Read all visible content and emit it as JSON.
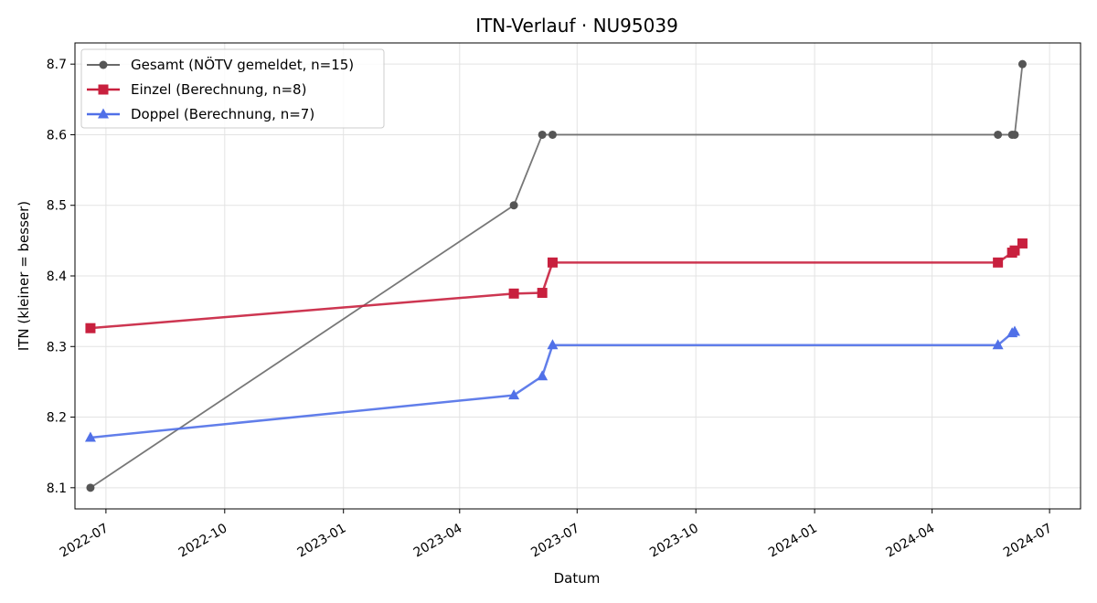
{
  "chart_data": {
    "type": "line",
    "title": "ITN-Verlauf · NU95039",
    "xlabel": "Datum",
    "ylabel": "ITN  (kleiner = besser)",
    "x_type": "date",
    "xlim": [
      "2022-06-07",
      "2024-07-25"
    ],
    "ylim": [
      8.07,
      8.73
    ],
    "x_ticks": [
      "2022-07-01",
      "2022-10-01",
      "2023-01-01",
      "2023-04-01",
      "2023-07-01",
      "2023-10-01",
      "2024-01-01",
      "2024-04-01",
      "2024-07-01"
    ],
    "x_tick_labels": [
      "2022-07",
      "2022-10",
      "2023-01",
      "2023-04",
      "2023-07",
      "2023-10",
      "2024-01",
      "2024-04",
      "2024-07"
    ],
    "y_ticks": [
      8.1,
      8.2,
      8.3,
      8.4,
      8.5,
      8.6,
      8.7
    ],
    "y_tick_labels": [
      "8.1",
      "8.2",
      "8.3",
      "8.4",
      "8.5",
      "8.6",
      "8.7"
    ],
    "grid": true,
    "legend_position": "top-left",
    "series": [
      {
        "name": "Gesamt (NÖTV gemeldet, n=15)",
        "color": "#555555",
        "marker": "circle",
        "points": [
          {
            "x": "2022-06-19",
            "y": 8.1
          },
          {
            "x": "2023-05-13",
            "y": 8.5
          },
          {
            "x": "2023-06-04",
            "y": 8.6
          },
          {
            "x": "2023-06-12",
            "y": 8.6
          },
          {
            "x": "2024-05-22",
            "y": 8.6
          },
          {
            "x": "2024-06-02",
            "y": 8.6
          },
          {
            "x": "2024-06-04",
            "y": 8.6
          },
          {
            "x": "2024-06-10",
            "y": 8.7
          }
        ]
      },
      {
        "name": "Einzel (Berechnung, n=8)",
        "color": "#c8203e",
        "marker": "square",
        "points": [
          {
            "x": "2022-06-19",
            "y": 8.326
          },
          {
            "x": "2023-05-13",
            "y": 8.375
          },
          {
            "x": "2023-06-04",
            "y": 8.376
          },
          {
            "x": "2023-06-12",
            "y": 8.419
          },
          {
            "x": "2024-05-22",
            "y": 8.419
          },
          {
            "x": "2024-06-02",
            "y": 8.433
          },
          {
            "x": "2024-06-04",
            "y": 8.436
          },
          {
            "x": "2024-06-10",
            "y": 8.446
          }
        ]
      },
      {
        "name": "Doppel (Berechnung, n=7)",
        "color": "#5070e8",
        "marker": "triangle",
        "points": [
          {
            "x": "2022-06-19",
            "y": 8.171
          },
          {
            "x": "2023-05-13",
            "y": 8.231
          },
          {
            "x": "2023-06-04",
            "y": 8.258
          },
          {
            "x": "2023-06-12",
            "y": 8.302
          },
          {
            "x": "2024-05-22",
            "y": 8.302
          },
          {
            "x": "2024-06-02",
            "y": 8.319
          },
          {
            "x": "2024-06-04",
            "y": 8.321
          }
        ]
      }
    ]
  }
}
